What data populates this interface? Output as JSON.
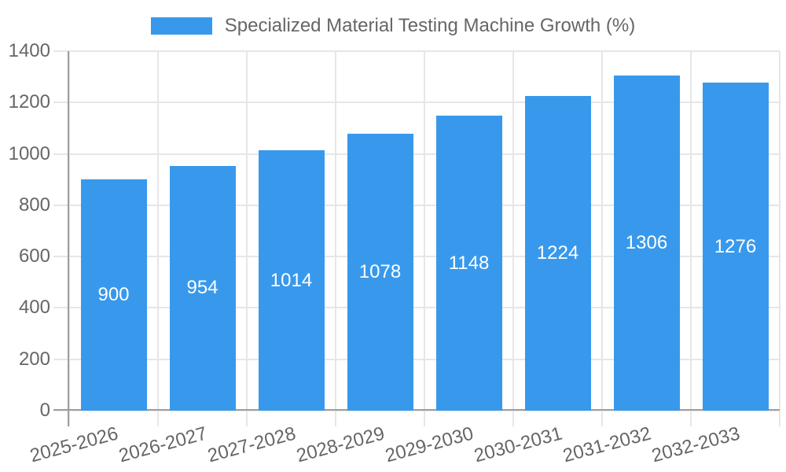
{
  "colors": {
    "bar": "#3899ec",
    "tick_text": "#666666",
    "grid_line": "#e6e6e6",
    "axis_line": "#9e9e9e",
    "bar_label_text": "#ffffff",
    "background": "#ffffff"
  },
  "chart_data": {
    "type": "bar",
    "title": "Specialized Material Testing Machine Growth (%)",
    "legend": {
      "position": "top",
      "label": "Specialized Material Testing Machine Growth (%)"
    },
    "categories": [
      "2025-2026",
      "2026-2027",
      "2027-2028",
      "2028-2029",
      "2029-2030",
      "2030-2031",
      "2031-2032",
      "2032-2033"
    ],
    "series": [
      {
        "name": "Specialized Material Testing Machine Growth (%)",
        "values": [
          900,
          954,
          1014,
          1078,
          1148,
          1224,
          1306,
          1276
        ],
        "color": "#3899ec"
      }
    ],
    "values": [
      900,
      954,
      1014,
      1078,
      1148,
      1224,
      1306,
      1276
    ],
    "xlabel": "",
    "ylabel": "",
    "ylim": [
      0,
      1400
    ],
    "yticks": [
      0,
      200,
      400,
      600,
      800,
      1000,
      1200,
      1400
    ],
    "grid": true,
    "x_tick_rotation_deg": -15,
    "data_labels": {
      "position": "inside-center",
      "color": "#ffffff"
    }
  }
}
